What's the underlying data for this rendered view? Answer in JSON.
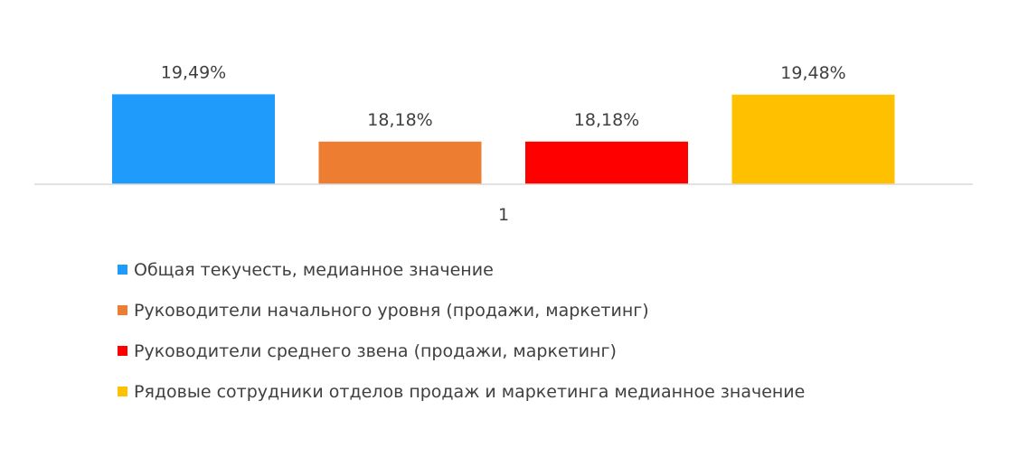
{
  "chart_data": {
    "type": "bar",
    "categories": [
      "1"
    ],
    "series": [
      {
        "name": "Общая текучесть, медианное значение",
        "values": [
          19.49
        ],
        "label": "19,49%",
        "color": "#1f9bfc"
      },
      {
        "name": "Руководители начального уровня (продажи, маркетинг)",
        "values": [
          18.18
        ],
        "label": "18,18%",
        "color": "#ed7d31"
      },
      {
        "name": "Руководители среднего звена  (продажи, маркетинг)",
        "values": [
          18.18
        ],
        "label": "18,18%",
        "color": "#ff0000"
      },
      {
        "name": "Рядовые сотрудники отделов продаж и маркетинга медианное значение",
        "values": [
          19.48
        ],
        "label": "19,48%",
        "color": "#ffc000"
      }
    ],
    "title": "",
    "xlabel": "",
    "ylabel": "",
    "ylim": [
      17,
      19.6
    ],
    "grid": false,
    "legend_position": "bottom",
    "axis_color": "#d9d9d9"
  }
}
